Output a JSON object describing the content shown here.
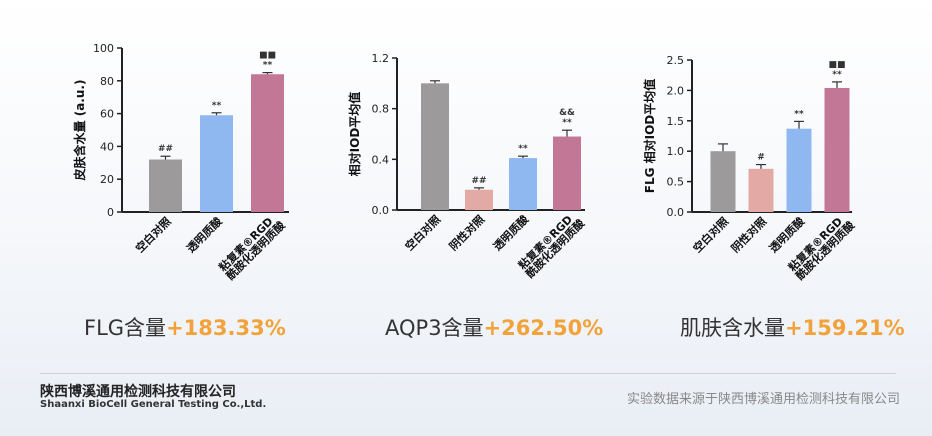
{
  "chart_data": [
    {
      "type": "bar",
      "ylabel": "皮肤含水量 (a.u.)",
      "ylim": [
        0,
        100
      ],
      "yticks": [
        0,
        20,
        40,
        60,
        80,
        100
      ],
      "categories": [
        "空白对照",
        "透明质酸",
        "粘复素®RGD 酰胺化透明质酸"
      ],
      "values": [
        32,
        59,
        84
      ],
      "errors": [
        2,
        1.5,
        1
      ],
      "colors": [
        "#9c9a9b",
        "#8fb7f0",
        "#c27797"
      ],
      "annotations": [
        [
          "##"
        ],
        [
          "**"
        ],
        [
          "■■",
          "**"
        ]
      ],
      "summary_label": "FLG含量",
      "summary_value": "+183.33%"
    },
    {
      "type": "bar",
      "ylabel": "相对IOD平均值",
      "ylim": [
        0,
        1.2
      ],
      "yticks": [
        0,
        0.4,
        0.8,
        1.2
      ],
      "categories": [
        "空白对照",
        "阴性对照",
        "透明质酸",
        "粘复素®RGD 酰胺化透明质酸"
      ],
      "values": [
        1.0,
        0.16,
        0.41,
        0.58
      ],
      "errors": [
        0.02,
        0.015,
        0.015,
        0.05
      ],
      "colors": [
        "#9c9a9b",
        "#e3a9a4",
        "#8fb7f0",
        "#c27797"
      ],
      "annotations": [
        [],
        [
          "##"
        ],
        [
          "**"
        ],
        [
          "&&",
          "**"
        ]
      ],
      "summary_label": "AQP3含量",
      "summary_value": "+262.50%"
    },
    {
      "type": "bar",
      "ylabel": "FLG 相对IOD平均值",
      "ylim": [
        0,
        2.5
      ],
      "yticks": [
        0,
        0.5,
        1.0,
        1.5,
        2.0,
        2.5
      ],
      "categories": [
        "空白对照",
        "阴性对照",
        "透明质酸",
        "粘复素®RGD 酰胺化透明质酸"
      ],
      "values": [
        1.0,
        0.71,
        1.37,
        2.04
      ],
      "errors": [
        0.12,
        0.07,
        0.12,
        0.1
      ],
      "colors": [
        "#9c9a9b",
        "#e3a9a4",
        "#8fb7f0",
        "#c27797"
      ],
      "annotations": [
        [],
        [
          "#"
        ],
        [
          "**"
        ],
        [
          "■■",
          "**"
        ]
      ],
      "summary_label": "肌肤含水量",
      "summary_value": "+159.21%"
    }
  ],
  "footer": {
    "company_cn": "陕西博溪通用检测科技有限公司",
    "company_en": "Shaanxi BioCell General Testing Co.,Ltd.",
    "source": "实验数据来源于陕西博溪通用检测科技有限公司"
  }
}
